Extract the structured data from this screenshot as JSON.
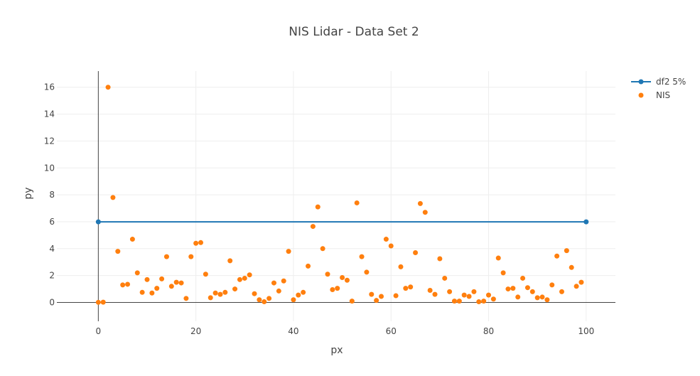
{
  "chart_data": {
    "type": "scatter",
    "title": "NIS Lidar - Data Set 2",
    "xlabel": "px",
    "ylabel": "py",
    "xlim": [
      -8.5,
      106
    ],
    "ylim": [
      -1.4,
      17.2
    ],
    "x_ticks": [
      0,
      20,
      40,
      60,
      80,
      100
    ],
    "y_ticks": [
      0,
      2,
      4,
      6,
      8,
      10,
      12,
      14,
      16
    ],
    "grid": true,
    "legend_position": "top-right",
    "series": [
      {
        "name": "df2 5%",
        "mode": "lines+markers",
        "color": "#1f77b4",
        "x": [
          0,
          100
        ],
        "y": [
          5.991,
          5.991
        ]
      },
      {
        "name": "NIS",
        "mode": "markers",
        "color": "#ff7f0e",
        "x": [
          0,
          1,
          2,
          3,
          4,
          5,
          6,
          7,
          8,
          9,
          10,
          11,
          12,
          13,
          14,
          15,
          16,
          17,
          18,
          19,
          20,
          21,
          22,
          23,
          24,
          25,
          26,
          27,
          28,
          29,
          30,
          31,
          32,
          33,
          34,
          35,
          36,
          37,
          38,
          39,
          40,
          41,
          42,
          43,
          44,
          45,
          46,
          47,
          48,
          49,
          50,
          51,
          52,
          53,
          54,
          55,
          56,
          57,
          58,
          59,
          60,
          61,
          62,
          63,
          64,
          65,
          66,
          67,
          68,
          69,
          70,
          71,
          72,
          73,
          74,
          75,
          76,
          77,
          78,
          79,
          80,
          81,
          82,
          83,
          84,
          85,
          86,
          87,
          88,
          89,
          90,
          91,
          92,
          93,
          94,
          95,
          96,
          97,
          98,
          99
        ],
        "y": [
          0.01,
          0.02,
          16.0,
          7.8,
          3.8,
          1.3,
          1.35,
          4.7,
          2.2,
          0.75,
          1.7,
          0.7,
          1.05,
          1.75,
          3.4,
          1.2,
          1.5,
          1.45,
          0.3,
          3.4,
          4.4,
          4.45,
          2.1,
          0.35,
          0.7,
          0.6,
          0.75,
          3.1,
          1.0,
          1.7,
          1.8,
          2.05,
          0.65,
          0.2,
          0.05,
          0.3,
          1.45,
          0.85,
          1.6,
          3.8,
          0.2,
          0.55,
          0.75,
          2.7,
          5.65,
          7.1,
          4.0,
          2.1,
          0.95,
          1.05,
          1.85,
          1.65,
          0.1,
          7.4,
          3.4,
          2.25,
          0.6,
          0.15,
          0.45,
          4.7,
          4.2,
          0.5,
          2.65,
          1.05,
          1.15,
          3.7,
          7.35,
          6.7,
          0.9,
          0.6,
          3.25,
          1.8,
          0.8,
          0.1,
          0.1,
          0.55,
          0.45,
          0.8,
          0.05,
          0.1,
          0.55,
          0.25,
          3.3,
          2.2,
          1.0,
          1.05,
          0.4,
          1.8,
          1.1,
          0.8,
          0.35,
          0.4,
          0.2,
          1.3,
          3.45,
          0.8,
          3.85,
          2.6,
          1.2,
          1.5
        ]
      }
    ]
  }
}
